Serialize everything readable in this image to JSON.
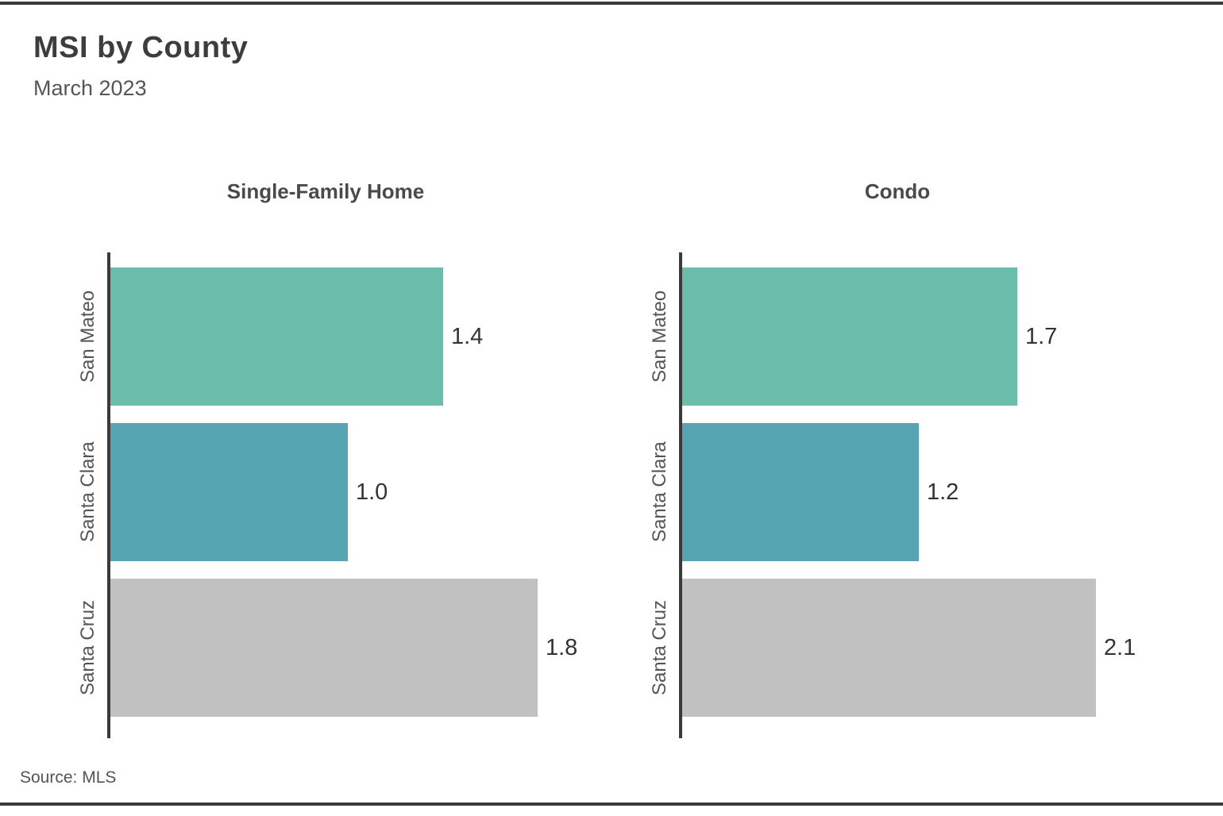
{
  "header": {
    "title": "MSI by County",
    "subtitle": "March 2023"
  },
  "footer": {
    "source": "Source: MLS"
  },
  "colors": {
    "san_mateo_green": "#6cbcac",
    "santa_clara_teal": "#57a4b2",
    "santa_cruz_gray": "#c1c1c1",
    "axis_line": "#3a3a3a"
  },
  "chart_data": [
    {
      "type": "bar",
      "orientation": "horizontal",
      "title": "Single-Family Home",
      "categories": [
        "San Mateo",
        "Santa Clara",
        "Santa Cruz"
      ],
      "values": [
        1.4,
        1.0,
        1.8
      ],
      "value_labels": [
        "1.4",
        "1.0",
        "1.8"
      ],
      "bar_colors": [
        "#6cbcac",
        "#57a4b2",
        "#c1c1c1"
      ],
      "xlabel": "",
      "ylabel": "",
      "grid": false,
      "legend": false
    },
    {
      "type": "bar",
      "orientation": "horizontal",
      "title": "Condo",
      "categories": [
        "San Mateo",
        "Santa Clara",
        "Santa Cruz"
      ],
      "values": [
        1.7,
        1.2,
        2.1
      ],
      "value_labels": [
        "1.7",
        "1.2",
        "2.1"
      ],
      "bar_colors": [
        "#6cbcac",
        "#57a4b2",
        "#c1c1c1"
      ],
      "xlabel": "",
      "ylabel": "",
      "grid": false,
      "legend": false
    }
  ]
}
